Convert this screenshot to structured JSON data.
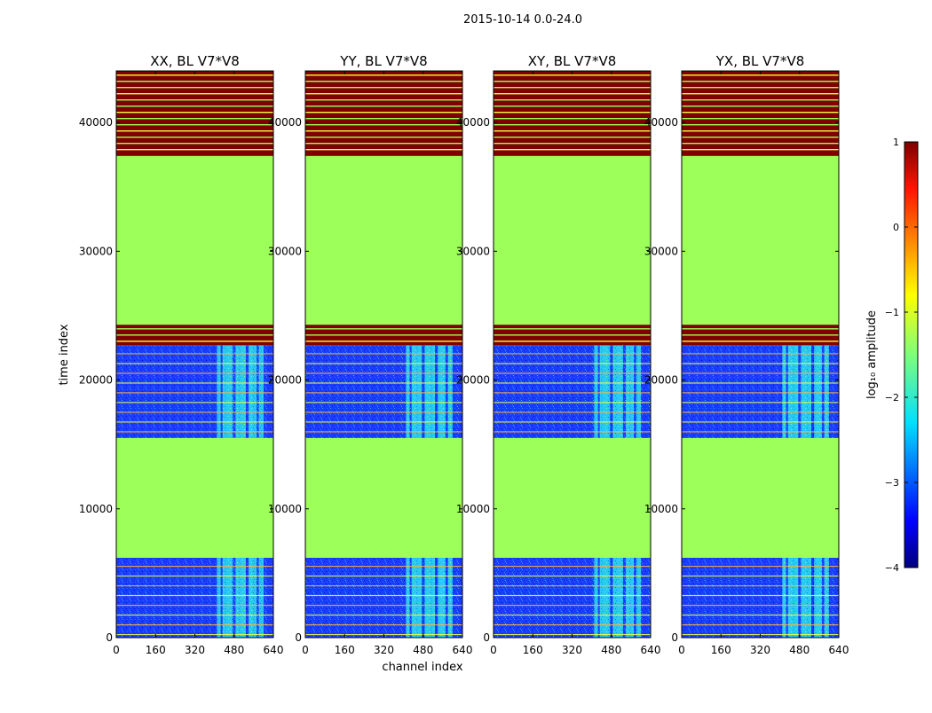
{
  "figure_title": "2015-10-14 0.0-24.0",
  "colors": {
    "flagged_red": "#800000",
    "flagged_green": "#9cff5a",
    "noise_blue": "#1a3cff",
    "rfi_cyan": "#3df2e6",
    "stripe_yellow": "#f2ff3c"
  },
  "chart_data": {
    "type": "heatmap",
    "xlabel": "channel index",
    "ylabel": "time index",
    "xlim": [
      0,
      640
    ],
    "ylim": [
      0,
      44000
    ],
    "xticks": [
      0,
      160,
      320,
      480,
      640
    ],
    "yticks": [
      0,
      10000,
      20000,
      30000,
      40000
    ],
    "ytick_labels": [
      "0",
      "10000",
      "20000",
      "30000",
      "40000"
    ],
    "panels": [
      {
        "title": "XX, BL V7*V8",
        "rfi_channel_range": [
          410,
          600
        ]
      },
      {
        "title": "YY, BL V7*V8",
        "rfi_channel_range": [
          410,
          600
        ]
      },
      {
        "title": "XY, BL V7*V8",
        "rfi_channel_range": [
          410,
          600
        ]
      },
      {
        "title": "YX, BL V7*V8",
        "rfi_channel_range": [
          410,
          600
        ]
      }
    ],
    "time_segments": [
      {
        "start": 0,
        "end": 6200,
        "kind": "data"
      },
      {
        "start": 6200,
        "end": 15500,
        "kind": "flagged_mid"
      },
      {
        "start": 15500,
        "end": 22700,
        "kind": "data"
      },
      {
        "start": 22700,
        "end": 24300,
        "kind": "flagged_high"
      },
      {
        "start": 24300,
        "end": 37400,
        "kind": "flagged_mid"
      },
      {
        "start": 37400,
        "end": 44000,
        "kind": "flagged_high"
      }
    ],
    "colorbar": {
      "label": "log₁₀ amplitude",
      "range": [
        -4,
        1
      ],
      "ticks": [
        1,
        0,
        -1,
        -2,
        -3,
        -4
      ],
      "tick_labels": [
        "1",
        "0",
        "−1",
        "−2",
        "−3",
        "−4"
      ]
    }
  }
}
